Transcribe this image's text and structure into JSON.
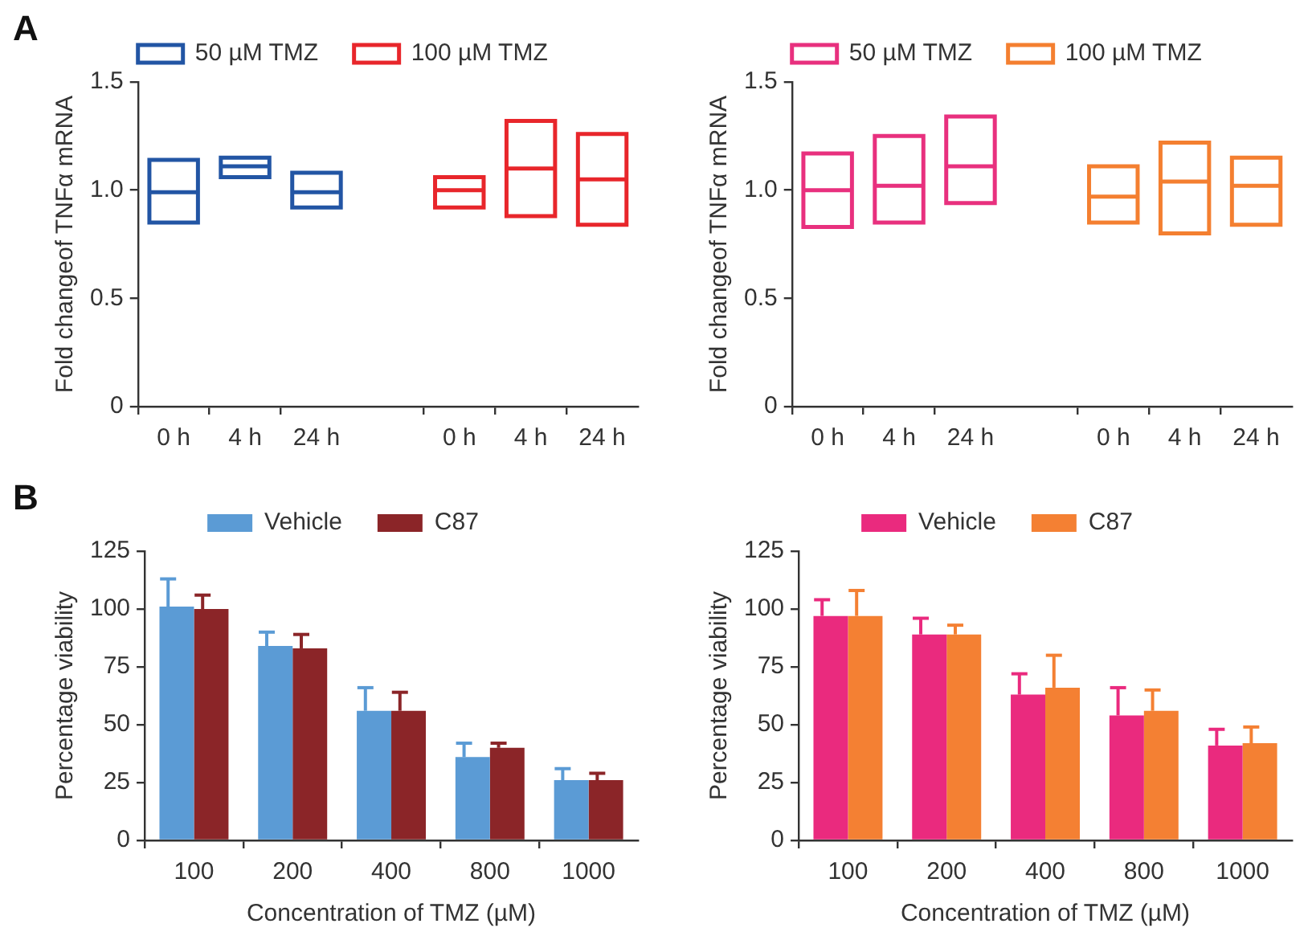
{
  "chart_data": [
    {
      "type": "box",
      "annotations": [
        "A"
      ],
      "ylabel": "Fold changeof TNFα mRNA",
      "categories": [
        "0 h",
        "4 h",
        "24 h",
        null,
        "0 h",
        "4 h",
        "24 h"
      ],
      "ylim": [
        0,
        1.5
      ],
      "yticks": [
        0,
        0.5,
        {
          "value": 1,
          "label": "1.0"
        },
        1.5
      ],
      "grid": false,
      "legend": "top",
      "series": [
        {
          "name": "50 µM TMZ",
          "color": "#2255a4",
          "boxes": [
            {
              "low": 0.85,
              "q1": 0.85,
              "median": 0.99,
              "q3": 1.14,
              "high": 1.14
            },
            {
              "low": 1.06,
              "q1": 1.06,
              "median": 1.11,
              "q3": 1.15,
              "high": 1.15
            },
            {
              "low": 0.92,
              "q1": 0.92,
              "median": 0.99,
              "q3": 1.08,
              "high": 1.08
            },
            null,
            null,
            null,
            null
          ]
        },
        {
          "name": "100 µM TMZ",
          "color": "#e8262b",
          "boxes": [
            null,
            null,
            null,
            null,
            {
              "low": 0.92,
              "q1": 0.92,
              "median": 1.0,
              "q3": 1.06,
              "high": 1.06
            },
            {
              "low": 0.88,
              "q1": 0.88,
              "median": 1.1,
              "q3": 1.32,
              "high": 1.32
            },
            {
              "low": 0.84,
              "q1": 0.84,
              "median": 1.05,
              "q3": 1.26,
              "high": 1.26
            }
          ]
        }
      ]
    },
    {
      "type": "box",
      "ylabel": "Fold changeof TNFα mRNA",
      "categories": [
        "0 h",
        "4 h",
        "24 h",
        null,
        "0 h",
        "4 h",
        "24 h"
      ],
      "ylim": [
        0,
        1.5
      ],
      "yticks": [
        0,
        0.5,
        {
          "value": 1,
          "label": "1.0"
        },
        1.5
      ],
      "grid": false,
      "legend": "top",
      "series": [
        {
          "name": "50 µM TMZ",
          "color": "#e8307e",
          "boxes": [
            {
              "low": 0.83,
              "q1": 0.83,
              "median": 1.0,
              "q3": 1.17,
              "high": 1.17
            },
            {
              "low": 0.85,
              "q1": 0.85,
              "median": 1.02,
              "q3": 1.25,
              "high": 1.25
            },
            {
              "low": 0.94,
              "q1": 0.94,
              "median": 1.11,
              "q3": 1.34,
              "high": 1.34
            },
            null,
            null,
            null,
            null
          ]
        },
        {
          "name": "100 µM TMZ",
          "color": "#f47f30",
          "boxes": [
            null,
            null,
            null,
            null,
            {
              "low": 0.85,
              "q1": 0.85,
              "median": 0.97,
              "q3": 1.11,
              "high": 1.11
            },
            {
              "low": 0.8,
              "q1": 0.8,
              "median": 1.04,
              "q3": 1.22,
              "high": 1.22
            },
            {
              "low": 0.84,
              "q1": 0.84,
              "median": 1.02,
              "q3": 1.15,
              "high": 1.15
            }
          ]
        }
      ]
    },
    {
      "type": "bar",
      "annotations": [
        "B"
      ],
      "xlabel": "Concentration of TMZ (µM)",
      "ylabel": "Percentage viability",
      "categories": [
        "100",
        "200",
        "400",
        "800",
        "1000"
      ],
      "ylim": [
        0,
        125
      ],
      "yticks": [
        0,
        25,
        50,
        75,
        100,
        125
      ],
      "grid": false,
      "legend": "top",
      "series": [
        {
          "name": "Vehicle",
          "color": "#5b9bd5",
          "values": [
            101,
            84,
            56,
            36,
            26
          ],
          "errors": [
            [
              101,
              113
            ],
            [
              84,
              90
            ],
            [
              56,
              66
            ],
            [
              36,
              42
            ],
            [
              26,
              31
            ]
          ]
        },
        {
          "name": "C87",
          "color": "#8b2528",
          "values": [
            100,
            83,
            56,
            40,
            26
          ],
          "errors": [
            [
              100,
              106
            ],
            [
              83,
              89
            ],
            [
              56,
              64
            ],
            [
              40,
              42
            ],
            [
              26,
              29
            ]
          ]
        }
      ]
    },
    {
      "type": "bar",
      "xlabel": "Concentration of TMZ (µM)",
      "ylabel": "Percentage viability",
      "categories": [
        "100",
        "200",
        "400",
        "800",
        "1000"
      ],
      "ylim": [
        0,
        125
      ],
      "yticks": [
        0,
        25,
        50,
        75,
        100,
        125
      ],
      "grid": false,
      "legend": "top",
      "series": [
        {
          "name": "Vehicle",
          "color": "#ea2a7e",
          "values": [
            97,
            89,
            63,
            54,
            41
          ],
          "errors": [
            [
              97,
              104
            ],
            [
              89,
              96
            ],
            [
              63,
              72
            ],
            [
              54,
              66
            ],
            [
              41,
              48
            ]
          ]
        },
        {
          "name": "C87",
          "color": "#f48033",
          "values": [
            97,
            89,
            66,
            56,
            42
          ],
          "errors": [
            [
              97,
              108
            ],
            [
              89,
              93
            ],
            [
              66,
              80
            ],
            [
              56,
              65
            ],
            [
              42,
              49
            ]
          ]
        }
      ]
    }
  ]
}
